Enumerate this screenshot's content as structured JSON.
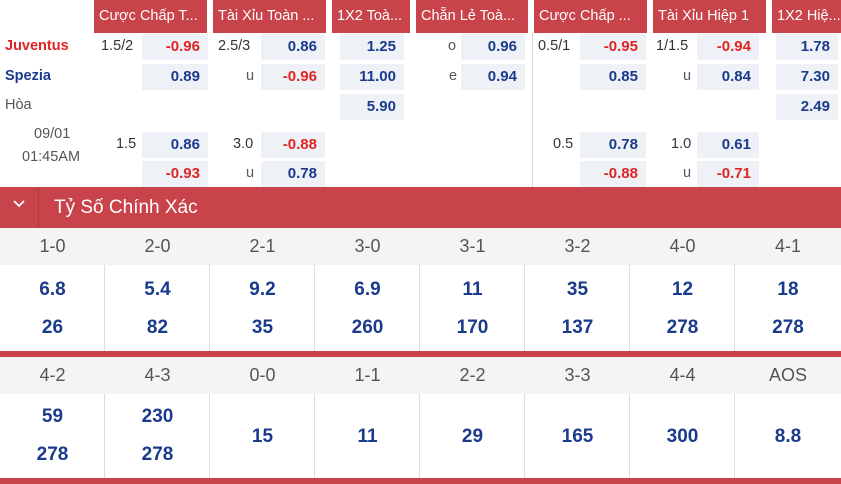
{
  "headers": [
    "Cược Chấp T...",
    "Tài Xỉu Toàn ...",
    "1X2 Toà...",
    "Chẵn Lẻ Toà...",
    "Cược Chấp ...",
    "Tài Xỉu Hiệp 1",
    "1X2 Hiệ..."
  ],
  "teams": {
    "home": "Juventus",
    "away": "Spezia",
    "draw": "Hòa"
  },
  "match_time": {
    "date": "09/01",
    "time": "01:45AM"
  },
  "row1": {
    "hdp_line": "1.5/2",
    "hdp_home": "-0.96",
    "hdp_away": "0.89",
    "ou_line": "2.5/3",
    "ou_over": "0.86",
    "ou_u": "u",
    "ou_under": "-0.96",
    "x12_home": "1.25",
    "x12_away": "11.00",
    "x12_draw": "5.90",
    "oe_o": "o",
    "oe_odd": "0.96",
    "oe_e": "e",
    "oe_even": "0.94",
    "h1hdp_line": "0.5/1",
    "h1hdp_home": "-0.95",
    "h1hdp_away": "0.85",
    "h1ou_line": "1/1.5",
    "h1ou_over": "-0.94",
    "h1ou_u": "u",
    "h1ou_under": "0.84",
    "h1x12_home": "1.78",
    "h1x12_away": "7.30",
    "h1x12_draw": "2.49"
  },
  "row2": {
    "hdp_line": "1.5",
    "hdp_home": "0.86",
    "hdp_away": "-0.93",
    "ou_line": "3.0",
    "ou_over": "-0.88",
    "ou_u": "u",
    "ou_under": "0.78",
    "h1hdp_line": "0.5",
    "h1hdp_home": "0.78",
    "h1hdp_away": "-0.88",
    "h1ou_line": "1.0",
    "h1ou_over": "0.61",
    "h1ou_u": "u",
    "h1ou_under": "-0.71"
  },
  "correct_score": {
    "title": "Tỷ Số Chính Xác",
    "block1": {
      "scores": [
        "1-0",
        "2-0",
        "2-1",
        "3-0",
        "3-1",
        "3-2",
        "4-0",
        "4-1"
      ],
      "home": [
        "6.8",
        "5.4",
        "9.2",
        "6.9",
        "11",
        "35",
        "12",
        "18"
      ],
      "away": [
        "26",
        "82",
        "35",
        "260",
        "170",
        "137",
        "278",
        "278"
      ]
    },
    "block2": {
      "scores": [
        "4-2",
        "4-3",
        "0-0",
        "1-1",
        "2-2",
        "3-3",
        "4-4",
        "AOS"
      ],
      "home": [
        "59",
        "230"
      ],
      "away": [
        "278",
        "278"
      ],
      "single": [
        "15",
        "11",
        "29",
        "165",
        "300",
        "8.8"
      ]
    }
  },
  "colors": {
    "accent": "#c8434a",
    "odds_blue": "#1a3a8c",
    "odds_red": "#e02424"
  }
}
